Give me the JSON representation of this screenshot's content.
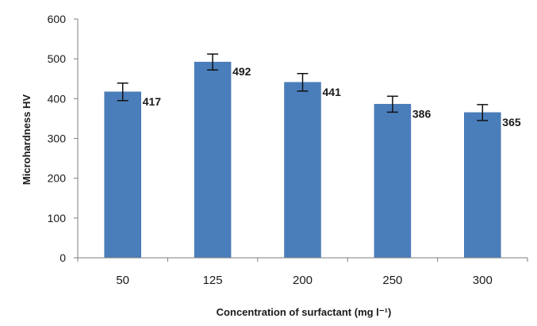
{
  "chart_data": {
    "type": "bar",
    "categories": [
      "50",
      "125",
      "200",
      "250",
      "300"
    ],
    "values": [
      417,
      492,
      441,
      386,
      365
    ],
    "error": [
      22,
      20,
      22,
      20,
      20
    ],
    "data_labels": [
      "417",
      "492",
      "441",
      "386",
      "365"
    ],
    "title": "",
    "xlabel": "Concentration of surfactant  (mg l⁻¹)",
    "ylabel": "Microhardness  HV",
    "ylim": [
      0,
      600
    ],
    "yticks": [
      "0",
      "100",
      "200",
      "300",
      "400",
      "500",
      "600"
    ],
    "grid": false,
    "legend": "none",
    "colors": {
      "bar": "#4a7ebb",
      "bar_edge": "#3e6ea8",
      "axis": "#7f7f7f",
      "text": "#1a1a1a"
    }
  }
}
